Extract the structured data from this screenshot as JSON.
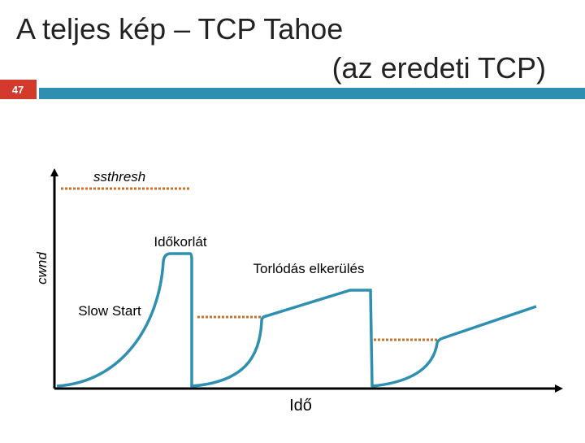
{
  "header": {
    "title_line1": "A teljes kép – TCP Tahoe",
    "title_line2": "(az eredeti TCP)",
    "slide_number": "47"
  },
  "diagram": {
    "y_axis_label": "cwnd",
    "x_axis_label": "Idő",
    "threshold_label": "ssthresh",
    "timeout_label": "Időkorlát",
    "congestion_avoidance_label": "Torlódás elkerülés",
    "slow_start_label": "Slow Start"
  }
}
